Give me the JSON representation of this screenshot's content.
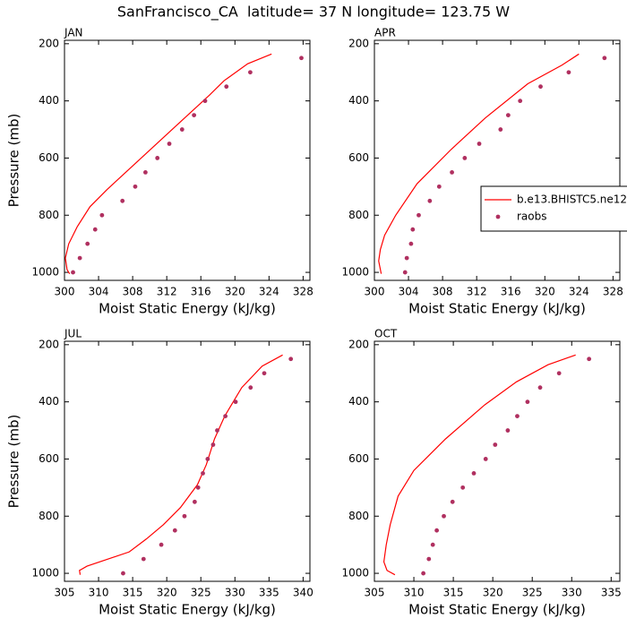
{
  "title": "SanFrancisco_CA  latitude= 37 N longitude= 123.75 W",
  "chart_data": [
    {
      "type": "line",
      "title": "JAN",
      "xlabel": "Moist Static Energy (kJ/kg)",
      "ylabel": "Pressure (mb)",
      "xlim": [
        300,
        328.8
      ],
      "xticks": [
        300,
        304,
        308,
        312,
        316,
        320,
        324,
        328
      ],
      "ylim": [
        1028,
        188
      ],
      "yticks": [
        200,
        400,
        600,
        800,
        1000
      ],
      "series": [
        {
          "name": "b.e13.BHISTC5.ne12",
          "color": "#ff0000",
          "mode": "line",
          "x": [
            324.3,
            321.5,
            318.7,
            317,
            313,
            309,
            305,
            303,
            301.5,
            300.5,
            300.1,
            300.3,
            300.6
          ],
          "values": [
            236,
            270,
            330,
            380,
            490,
            600,
            710,
            770,
            840,
            900,
            950,
            990,
            1005
          ]
        },
        {
          "name": "raobs",
          "color": "#b03060",
          "mode": "markers",
          "x": [
            327.8,
            321.8,
            319,
            316.5,
            315.2,
            313.8,
            312.3,
            310.9,
            309.5,
            308.3,
            306.8,
            304.4,
            303.6,
            302.7,
            301.8,
            301
          ],
          "values": [
            250,
            300,
            350,
            400,
            450,
            500,
            550,
            600,
            650,
            700,
            750,
            800,
            850,
            900,
            950,
            1000
          ]
        }
      ]
    },
    {
      "type": "line",
      "title": "APR",
      "xlabel": "Moist Static Energy (kJ/kg)",
      "legend": "right",
      "xlim": [
        300,
        328.8
      ],
      "xticks": [
        300,
        304,
        308,
        312,
        316,
        320,
        324,
        328
      ],
      "ylim": [
        1028,
        188
      ],
      "yticks": [
        200,
        400,
        600,
        800,
        1000
      ],
      "series": [
        {
          "name": "b.e13.BHISTC5.ne12",
          "color": "#ff0000",
          "mode": "line",
          "x": [
            324,
            322,
            318,
            313,
            309,
            305,
            302.5,
            301.2,
            300.7,
            300.5,
            300.8
          ],
          "values": [
            236,
            275,
            340,
            460,
            570,
            690,
            800,
            870,
            920,
            960,
            1005
          ]
        },
        {
          "name": "raobs",
          "color": "#b03060",
          "mode": "markers",
          "x": [
            327,
            322.8,
            319.5,
            317.1,
            315.7,
            314.8,
            312.3,
            310.6,
            309.1,
            307.6,
            306.5,
            305.2,
            304.5,
            304.3,
            303.8,
            303.6
          ],
          "values": [
            250,
            300,
            350,
            400,
            450,
            500,
            550,
            600,
            650,
            700,
            750,
            800,
            850,
            900,
            950,
            1000
          ]
        }
      ]
    },
    {
      "type": "line",
      "title": "JUL",
      "xlabel": "Moist Static Energy (kJ/kg)",
      "ylabel": "Pressure (mb)",
      "xlim": [
        305,
        341
      ],
      "xticks": [
        305,
        310,
        315,
        320,
        325,
        330,
        335,
        340
      ],
      "ylim": [
        1028,
        188
      ],
      "yticks": [
        200,
        400,
        600,
        800,
        1000
      ],
      "series": [
        {
          "name": "b.e13.BHISTC5.ne12",
          "color": "#ff0000",
          "mode": "line",
          "x": [
            337,
            334,
            331,
            328.5,
            327,
            325.8,
            324.5,
            322,
            319.5,
            317,
            314.5,
            308.3,
            307.2,
            307.3
          ],
          "values": [
            236,
            275,
            350,
            450,
            530,
            620,
            690,
            770,
            830,
            880,
            925,
            975,
            990,
            1005
          ]
        },
        {
          "name": "raobs",
          "color": "#b03060",
          "mode": "markers",
          "x": [
            338.2,
            334.3,
            332.3,
            330.1,
            328.6,
            327.4,
            326.8,
            326,
            325.3,
            324.6,
            324.1,
            322.6,
            321.2,
            319.2,
            316.6,
            313.6
          ],
          "values": [
            250,
            300,
            350,
            400,
            450,
            500,
            550,
            600,
            650,
            700,
            750,
            800,
            850,
            900,
            950,
            1000
          ]
        }
      ]
    },
    {
      "type": "line",
      "title": "OCT",
      "xlabel": "Moist Static Energy (kJ/kg)",
      "xlim": [
        305,
        336.1
      ],
      "xticks": [
        305,
        310,
        315,
        320,
        325,
        330,
        335
      ],
      "ylim": [
        1028,
        188
      ],
      "yticks": [
        200,
        400,
        600,
        800,
        1000
      ],
      "series": [
        {
          "name": "b.e13.BHISTC5.ne12",
          "color": "#ff0000",
          "mode": "line",
          "x": [
            330.5,
            327,
            323,
            319,
            314,
            310,
            308,
            307,
            306.5,
            306.2,
            306.6,
            307.6
          ],
          "values": [
            236,
            270,
            330,
            410,
            530,
            640,
            730,
            830,
            900,
            960,
            990,
            1005
          ]
        },
        {
          "name": "raobs",
          "color": "#b03060",
          "mode": "markers",
          "x": [
            332.2,
            328.4,
            326,
            324.4,
            323.1,
            321.9,
            320.3,
            319.1,
            317.6,
            316.2,
            314.9,
            313.8,
            312.9,
            312.4,
            311.9,
            311.2
          ],
          "values": [
            250,
            300,
            350,
            400,
            450,
            500,
            550,
            600,
            650,
            700,
            750,
            800,
            850,
            900,
            950,
            1000
          ]
        }
      ]
    }
  ]
}
